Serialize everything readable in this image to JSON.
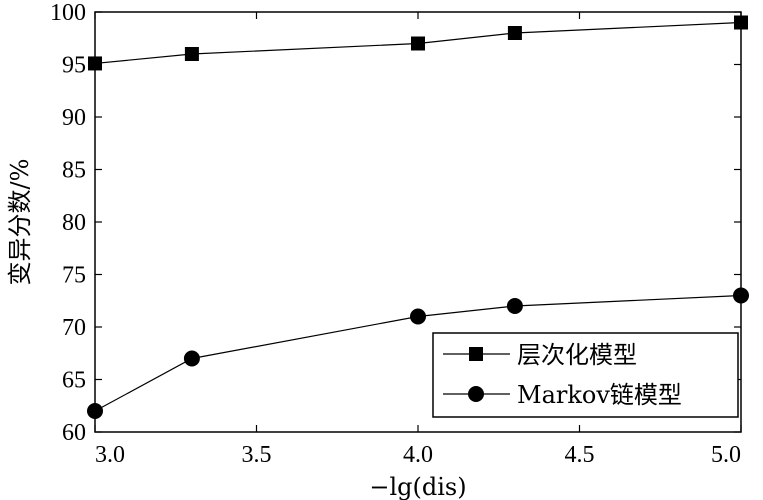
{
  "chart_data": {
    "type": "line",
    "x": [
      3.0,
      3.3,
      4.0,
      4.3,
      5.0
    ],
    "xlabel": "−lg(dis)",
    "ylabel": "变异分数/%",
    "xlim": [
      3.0,
      5.0
    ],
    "ylim": [
      60,
      100
    ],
    "xticks": [
      "3.0",
      "3.5",
      "4.0",
      "4.5",
      "5.0"
    ],
    "yticks": [
      "60",
      "65",
      "70",
      "75",
      "80",
      "85",
      "90",
      "95",
      "100"
    ],
    "grid": false,
    "legend_position": "bottom-right",
    "series": [
      {
        "name": "层次化模型",
        "marker": "square",
        "values": [
          95.1,
          96.0,
          97.0,
          98.0,
          99.0
        ]
      },
      {
        "name": "Markov链模型",
        "marker": "circle",
        "values": [
          62.0,
          67.0,
          71.0,
          72.0,
          73.0
        ]
      }
    ]
  },
  "colors": {
    "line": "#000000",
    "background": "#ffffff"
  }
}
